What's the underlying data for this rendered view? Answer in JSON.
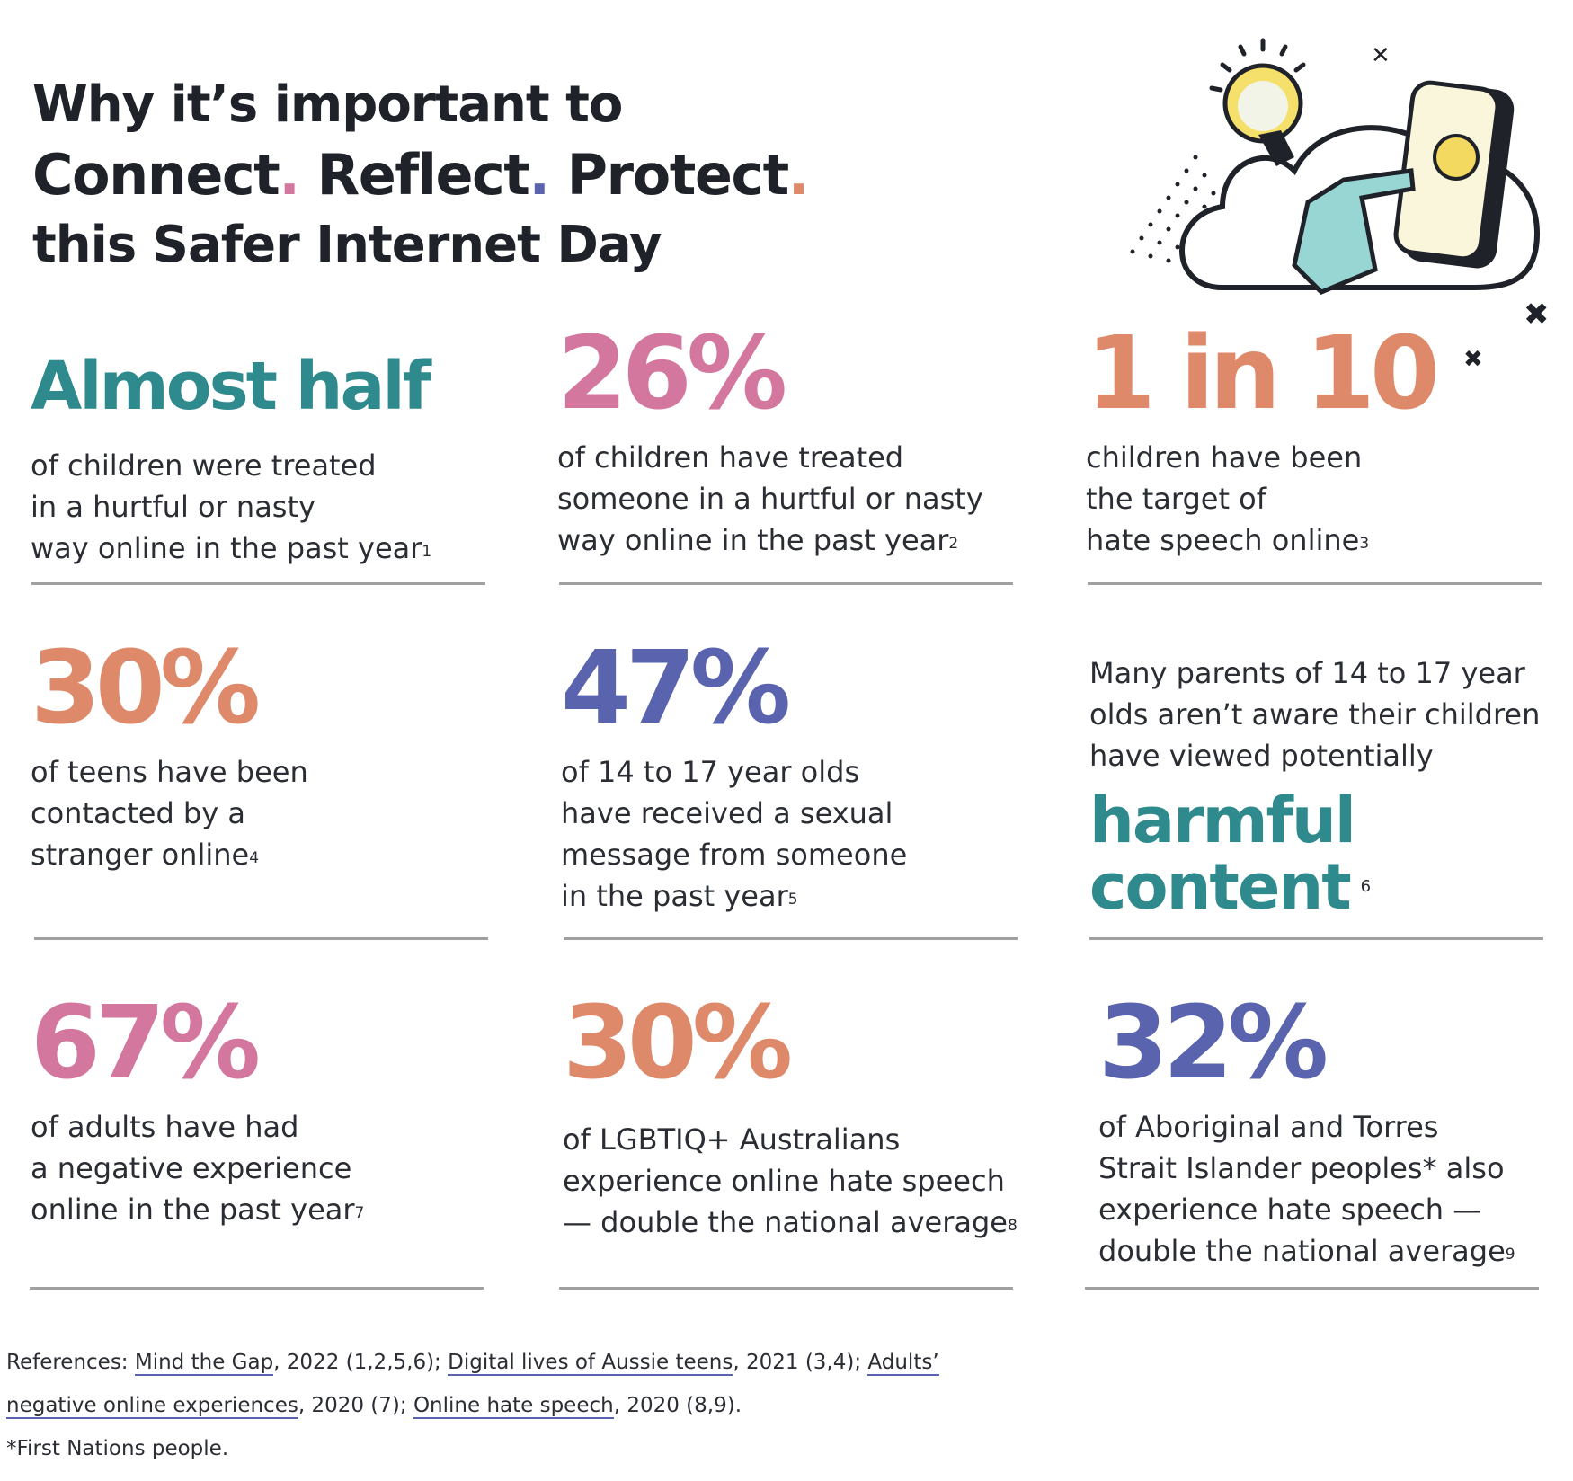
{
  "header": {
    "line1": "Why it’s important to",
    "word1": "Connect",
    "word2": "Reflect",
    "word3": "Protect",
    "dot": ".",
    "line3": "this Safer Internet Day"
  },
  "colors": {
    "teal": "#2e8a8c",
    "pink": "#d4779e",
    "orange": "#de8a6a",
    "blue": "#5a63ad",
    "dark": "#1f2228"
  },
  "stats": [
    {
      "value": "Almost half",
      "text": "of children were treated\nin a hurtful or nasty\nway online in the past year",
      "ref": "1"
    },
    {
      "value": "26%",
      "text": "of children have treated\nsomeone in a hurtful or nasty\nway online in the past year",
      "ref": "2"
    },
    {
      "value": "1 in 10",
      "text": "children have been\nthe target of\nhate speech online",
      "ref": "3"
    },
    {
      "value": "30%",
      "text": "of teens have been\ncontacted by a\nstranger online",
      "ref": "4"
    },
    {
      "value": "47%",
      "text": "of 14 to 17 year olds\nhave received a sexual\nmessage from someone\nin the past year",
      "ref": "5"
    },
    {
      "value": "harmful content",
      "value_line1": "harmful",
      "value_line2": "content",
      "text": "Many parents of 14 to 17 year\nolds aren’t aware their children\nhave viewed potentially",
      "ref": "6"
    },
    {
      "value": "67%",
      "text": "of adults have had\na negative experience\nonline in the past year",
      "ref": "7"
    },
    {
      "value": "30%",
      "text": "of LGBTIQ+ Australians\nexperience online hate speech\n— double the national average",
      "ref": "8"
    },
    {
      "value": "32%",
      "text": "of Aboriginal and Torres\nStrait Islander peoples* also\nexperience hate speech —\ndouble the national average",
      "ref": "9"
    }
  ],
  "references": {
    "prefix": "References: ",
    "links": [
      {
        "label": "Mind the Gap",
        "after": ", 2022 (1,2,5,6); "
      },
      {
        "label": "Digital lives of Aussie teens",
        "after": ", 2021 (3,4); "
      },
      {
        "label": "Adults’ negative online experiences",
        "after": ", 2020 (7); "
      },
      {
        "label": "Online hate speech",
        "after": ", 2020 (8,9)."
      }
    ],
    "footnote": "*First Nations people."
  }
}
